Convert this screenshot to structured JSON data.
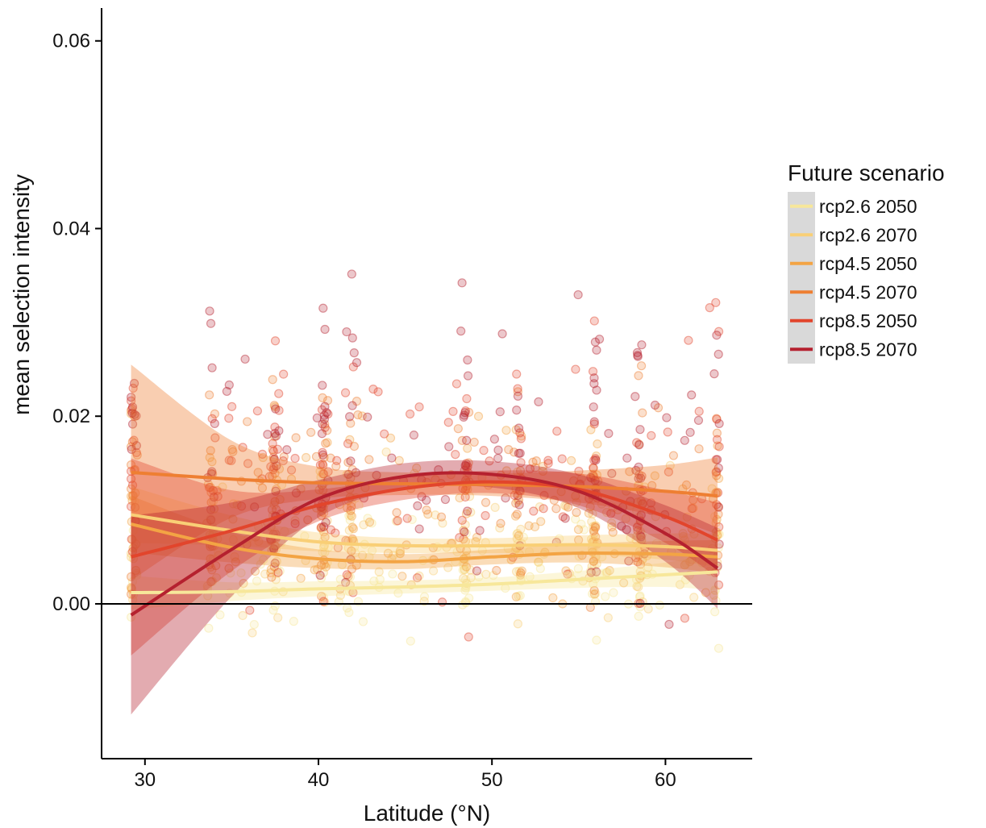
{
  "chart_data": {
    "type": "scatter",
    "title": "",
    "xlabel": "Latitude (°N)",
    "ylabel": "mean selection intensity",
    "xlim": [
      27.5,
      65
    ],
    "ylim": [
      -0.0165,
      0.0635
    ],
    "xticks": [
      30,
      40,
      50,
      60
    ],
    "yticks": [
      0.0,
      0.02,
      0.04,
      0.06
    ],
    "xtick_labels": [
      "30",
      "40",
      "50",
      "60"
    ],
    "ytick_labels": [
      "0.00",
      "0.02",
      "0.04",
      "0.06"
    ],
    "hline": 0,
    "grid": false,
    "legend": {
      "title": "Future scenario",
      "position": "right"
    },
    "series": [
      {
        "name": "rcp2.6 2050",
        "color": "#F7E79A",
        "fit_x": [
          29.2,
          35,
          40,
          45,
          50,
          55,
          60,
          63
        ],
        "fit_y": [
          0.0012,
          0.0013,
          0.0016,
          0.0018,
          0.0021,
          0.0026,
          0.0031,
          0.0034
        ],
        "ci_lower": [
          -0.0006,
          0.0003,
          0.0008,
          0.0011,
          0.0014,
          0.0017,
          0.0018,
          0.0014
        ],
        "ci_upper": [
          0.003,
          0.0023,
          0.0024,
          0.0025,
          0.0028,
          0.0035,
          0.0044,
          0.0054
        ]
      },
      {
        "name": "rcp2.6 2070",
        "color": "#F9CF76",
        "fit_x": [
          29.2,
          35,
          40,
          45,
          50,
          55,
          60,
          63
        ],
        "fit_y": [
          0.0095,
          0.0078,
          0.0066,
          0.0062,
          0.0062,
          0.0063,
          0.0061,
          0.0057
        ],
        "ci_lower": [
          0.0065,
          0.0062,
          0.0056,
          0.0054,
          0.0054,
          0.0053,
          0.0047,
          0.0039
        ],
        "ci_upper": [
          0.0125,
          0.0094,
          0.0076,
          0.007,
          0.007,
          0.0073,
          0.0075,
          0.0075
        ]
      },
      {
        "name": "rcp4.5 2050",
        "color": "#F3A444",
        "fit_x": [
          29.2,
          35,
          40,
          45,
          50,
          55,
          60,
          63
        ],
        "fit_y": [
          0.0085,
          0.006,
          0.0048,
          0.0045,
          0.005,
          0.0054,
          0.0053,
          0.005
        ],
        "ci_lower": [
          0.0055,
          0.0044,
          0.0038,
          0.0037,
          0.0042,
          0.0044,
          0.0039,
          0.0032
        ],
        "ci_upper": [
          0.0115,
          0.0076,
          0.0058,
          0.0053,
          0.0058,
          0.0064,
          0.0067,
          0.0068
        ]
      },
      {
        "name": "rcp4.5 2070",
        "color": "#EE7F32",
        "fit_x": [
          29.2,
          35,
          40,
          45,
          50,
          55,
          60,
          63
        ],
        "fit_y": [
          0.014,
          0.0133,
          0.0129,
          0.0128,
          0.0127,
          0.0125,
          0.012,
          0.0115
        ],
        "ci_lower": [
          0.0025,
          0.0092,
          0.0112,
          0.0116,
          0.0115,
          0.0108,
          0.0092,
          0.0074
        ],
        "ci_upper": [
          0.0255,
          0.0174,
          0.0146,
          0.014,
          0.0139,
          0.0142,
          0.0148,
          0.0156
        ]
      },
      {
        "name": "rcp8.5 2050",
        "color": "#E2452C",
        "fit_x": [
          29.2,
          35,
          40,
          45,
          50,
          55,
          60,
          63
        ],
        "fit_y": [
          0.005,
          0.0078,
          0.0105,
          0.0123,
          0.013,
          0.0122,
          0.0093,
          0.0068
        ],
        "ci_lower": [
          -0.0055,
          0.0035,
          0.0088,
          0.0111,
          0.0118,
          0.0105,
          0.0065,
          0.0028
        ],
        "ci_upper": [
          0.0155,
          0.0121,
          0.0122,
          0.0135,
          0.0142,
          0.0139,
          0.0121,
          0.0108
        ]
      },
      {
        "name": "rcp8.5 2070",
        "color": "#B5212F",
        "fit_x": [
          29.2,
          35,
          40,
          45,
          50,
          55,
          60,
          63
        ],
        "fit_y": [
          -0.0012,
          0.0058,
          0.0112,
          0.0136,
          0.0138,
          0.012,
          0.0075,
          0.0038
        ],
        "ci_lower": [
          -0.0118,
          0.0008,
          0.0092,
          0.0122,
          0.0124,
          0.0102,
          0.0045,
          -0.0005
        ],
        "ci_upper": [
          0.0094,
          0.0108,
          0.0132,
          0.015,
          0.0152,
          0.0138,
          0.0105,
          0.0081
        ]
      }
    ],
    "points_note_clusters": [
      29.3,
      33.8,
      37.5,
      40.3,
      41.8,
      48.5,
      51.5,
      55.9,
      58.5,
      63
    ]
  }
}
